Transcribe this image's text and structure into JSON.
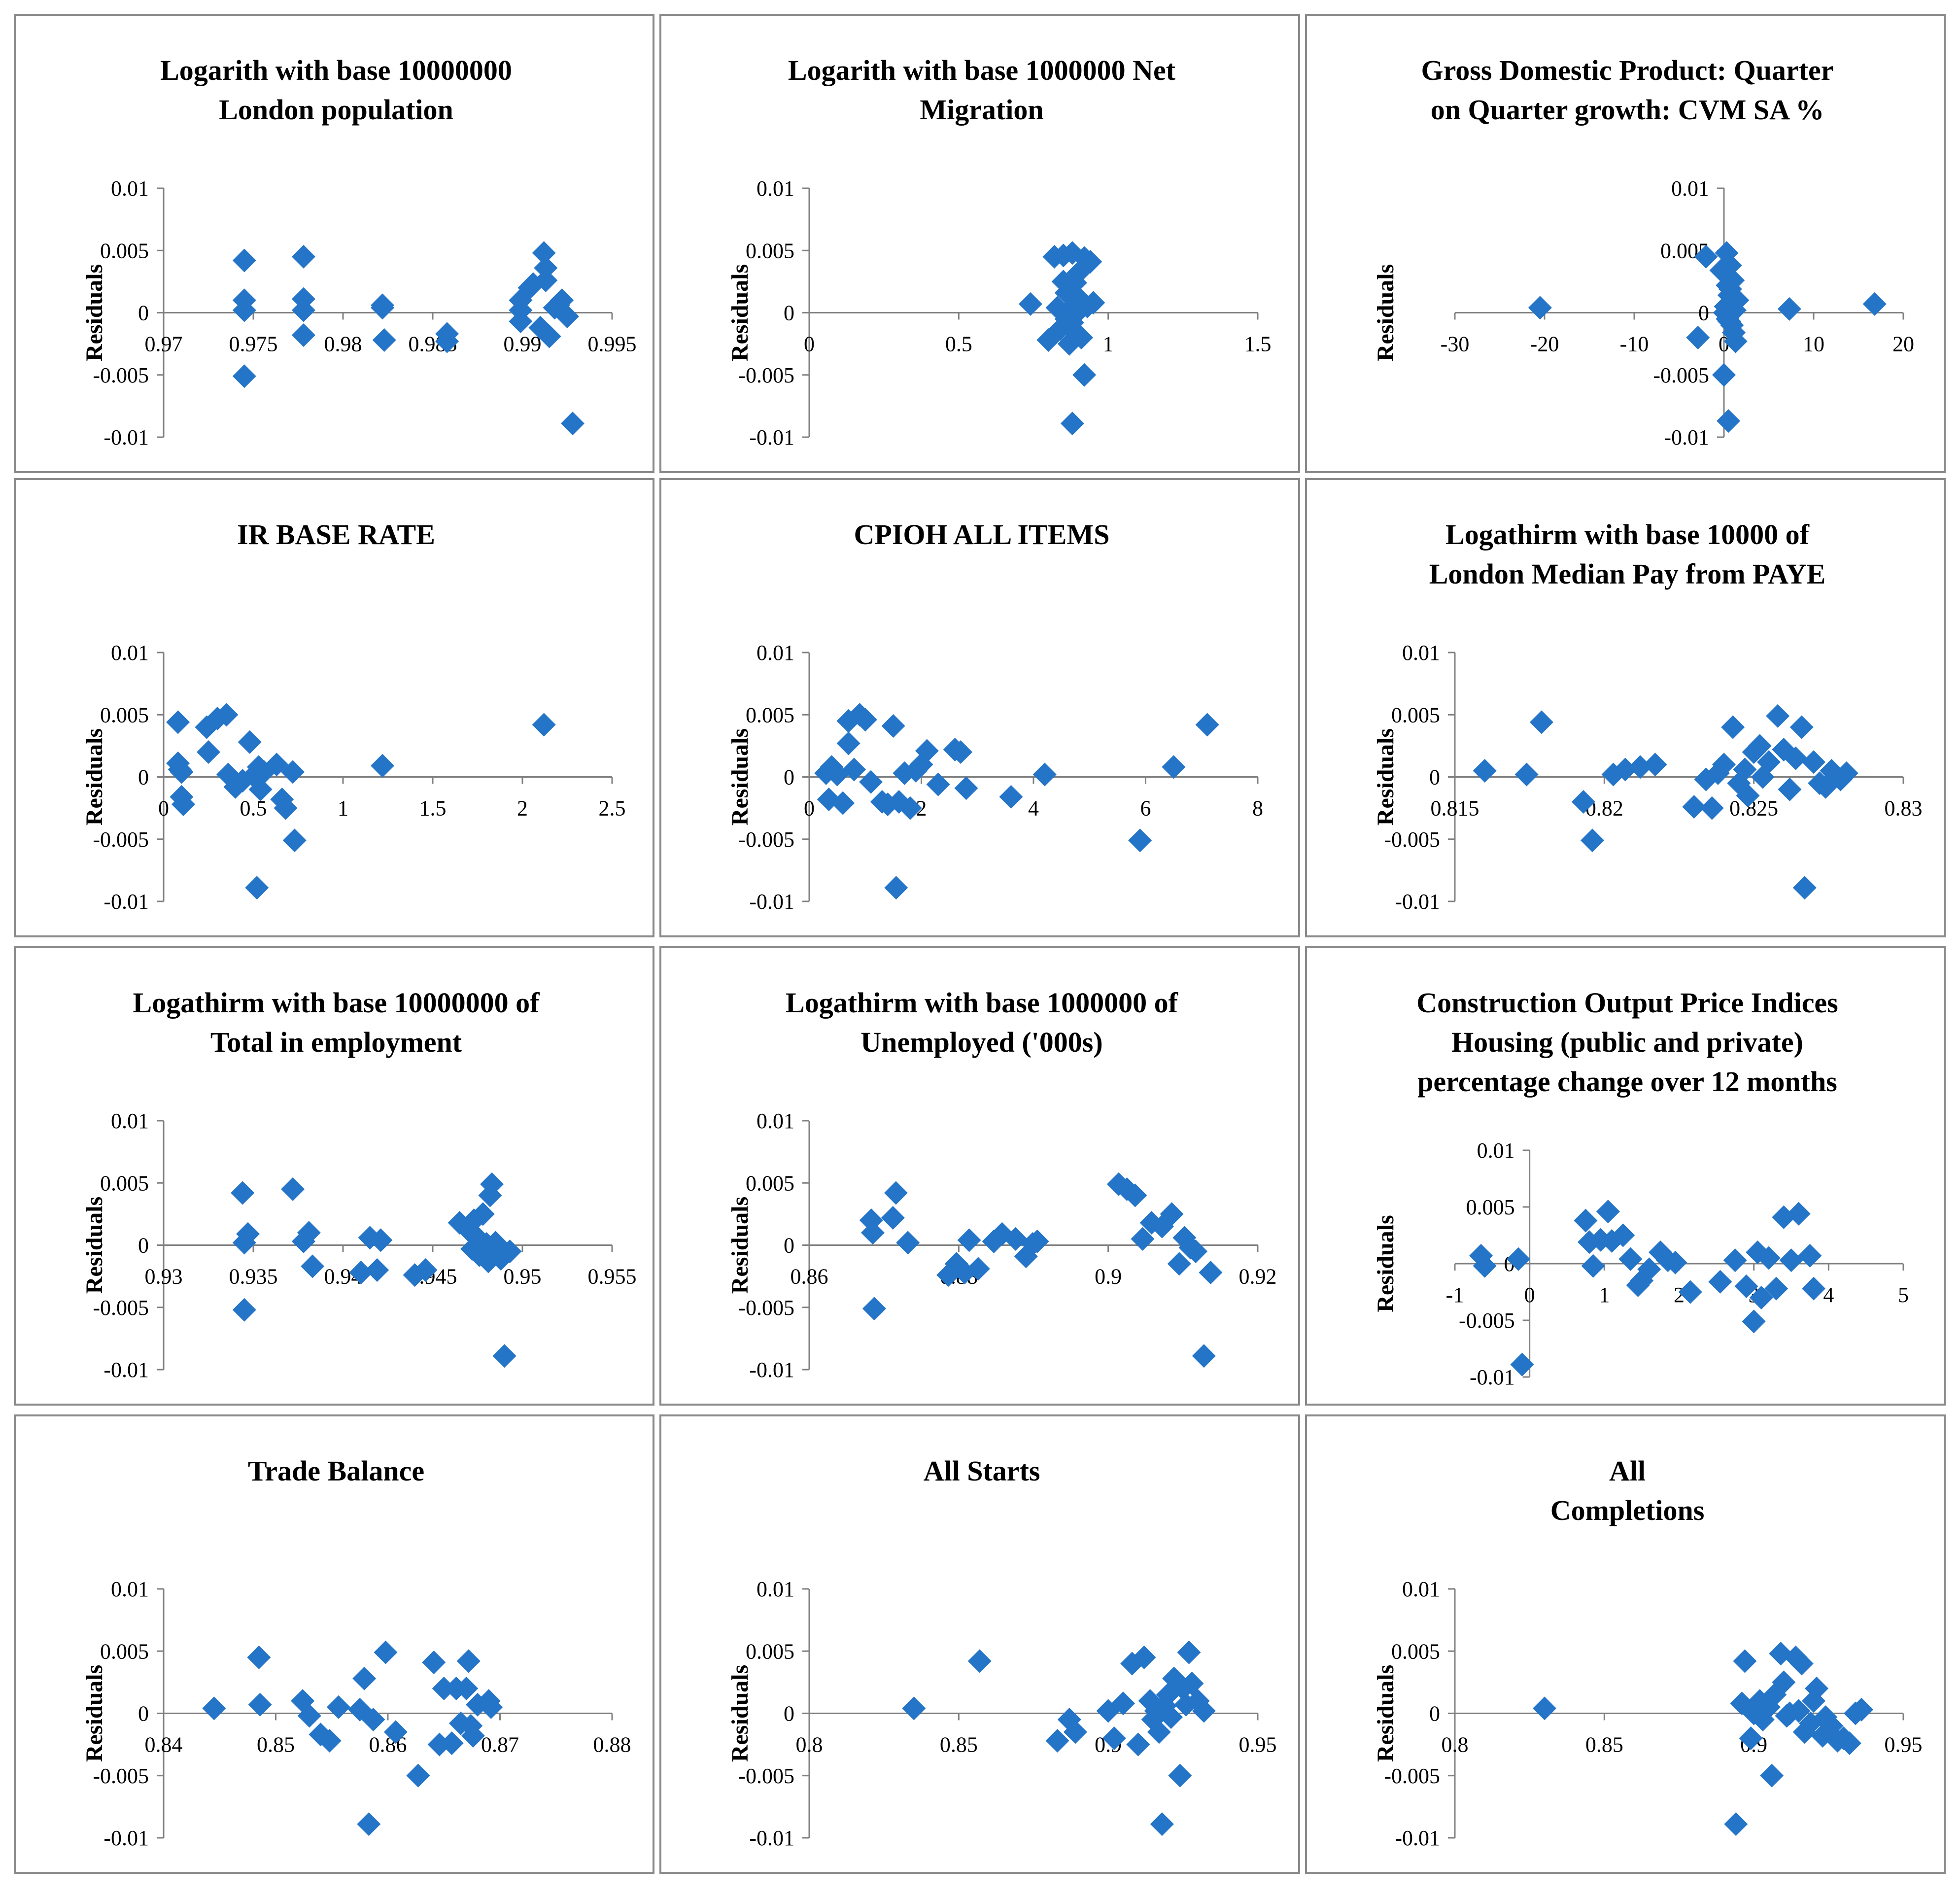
{
  "marker_color": "#2474c8",
  "axis_color": "#808080",
  "border_color": "#8a8a8a",
  "chart_data": [
    {
      "type": "scatter",
      "title_lines": [
        "Logarith with base 10000000",
        "London population"
      ],
      "ylabel": "Residuals",
      "xlim": [
        0.97,
        0.995
      ],
      "ylim": [
        -0.01,
        0.01
      ],
      "x_ticks": [
        "0.97",
        "0.975",
        "0.98",
        "0.985",
        "0.99",
        "0.995"
      ],
      "y_ticks": [
        "0.01",
        "0.005",
        "0",
        "-0.005",
        "-0.01"
      ],
      "x": [
        0.9745,
        0.9745,
        0.9745,
        0.9745,
        0.9778,
        0.9778,
        0.9778,
        0.9778,
        0.9822,
        0.9822,
        0.9823,
        0.9858,
        0.9858,
        0.9899,
        0.9899,
        0.9899,
        0.9904,
        0.9906,
        0.991,
        0.9912,
        0.9913,
        0.9913,
        0.9915,
        0.9918,
        0.992,
        0.9922,
        0.9925,
        0.9928
      ],
      "y": [
        0.0042,
        0.001,
        0.0002,
        -0.0051,
        0.0045,
        0.0011,
        0.0002,
        -0.0018,
        0.0006,
        0.0004,
        -0.0022,
        -0.0017,
        -0.0023,
        0.001,
        0.0002,
        -0.0007,
        0.002,
        0.0023,
        -0.0012,
        0.0048,
        0.0036,
        0.0026,
        -0.0019,
        0.0004,
        0.0006,
        0.001,
        -0.0003,
        -0.0089
      ]
    },
    {
      "type": "scatter",
      "title_lines": [
        "Logarith with base 1000000 Net",
        "Migration"
      ],
      "ylabel": "Residuals",
      "xlim": [
        0,
        1.5
      ],
      "ylim": [
        -0.01,
        0.01
      ],
      "x_ticks": [
        "0",
        "0.5",
        "1",
        "1.5"
      ],
      "y_ticks": [
        "0.01",
        "0.005",
        "0",
        "-0.005",
        "-0.01"
      ],
      "x": [
        0.74,
        0.8,
        0.82,
        0.83,
        0.84,
        0.85,
        0.86,
        0.87,
        0.87,
        0.88,
        0.88,
        0.89,
        0.89,
        0.9,
        0.9,
        0.91,
        0.91,
        0.92,
        0.92,
        0.93,
        0.94,
        0.95,
        0.9,
        0.85,
        0.88,
        0.86
      ],
      "y": [
        0.0007,
        -0.0022,
        0.0045,
        0.0004,
        -0.0013,
        0.0046,
        0.0016,
        0.0002,
        -0.0025,
        0.0048,
        -0.0089,
        0.0024,
        -0.0016,
        0.0032,
        0.0001,
        0.0006,
        -0.002,
        0.0044,
        -0.005,
        0.0005,
        0.0041,
        0.0008,
        0.0012,
        0.0025,
        -0.0008,
        -0.0005
      ]
    },
    {
      "type": "scatter",
      "title_lines": [
        "Gross Domestic Product: Quarter",
        "on Quarter growth: CVM SA %"
      ],
      "ylabel": "Residuals",
      "xlim": [
        -30,
        20
      ],
      "ylim": [
        -0.01,
        0.01
      ],
      "x_ticks": [
        "-30",
        "-20",
        "-10",
        "0",
        "10",
        "20"
      ],
      "y_ticks": [
        "0.01",
        "0.005",
        "0",
        "-0.005",
        "-0.01"
      ],
      "x": [
        -20.5,
        -2.9,
        -2.0,
        -0.3,
        0.0,
        0.2,
        0.3,
        0.4,
        0.5,
        0.6,
        0.6,
        0.7,
        0.8,
        0.9,
        1.0,
        1.1,
        1.2,
        1.3,
        1.5,
        0.1,
        0.4,
        0.7,
        7.3,
        16.8
      ],
      "y": [
        0.0004,
        -0.002,
        0.0045,
        0.0034,
        -0.005,
        0.0005,
        0.0048,
        0.0022,
        -0.0087,
        -0.0007,
        0.0014,
        0.0038,
        0.0008,
        -0.001,
        0.0026,
        -0.0016,
        0.0002,
        -0.0023,
        0.001,
        0.0,
        -0.0005,
        0.0019,
        0.0003,
        0.0007
      ]
    },
    {
      "type": "scatter",
      "title_lines": [
        "IR BASE RATE"
      ],
      "ylabel": "Residuals",
      "xlim": [
        0,
        2.5
      ],
      "ylim": [
        -0.01,
        0.01
      ],
      "x_ticks": [
        "0",
        "0.5",
        "1",
        "1.5",
        "2",
        "2.5"
      ],
      "y_ticks": [
        "0.01",
        "0.005",
        "0",
        "-0.005",
        "-0.01"
      ],
      "x": [
        0.08,
        0.08,
        0.09,
        0.1,
        0.1,
        0.11,
        0.24,
        0.25,
        0.3,
        0.35,
        0.36,
        0.4,
        0.44,
        0.48,
        0.5,
        0.52,
        0.53,
        0.54,
        0.56,
        0.63,
        0.66,
        0.68,
        0.72,
        0.73,
        1.22,
        2.12
      ],
      "y": [
        0.0044,
        0.0011,
        0.0006,
        0.0004,
        -0.0016,
        -0.0022,
        0.004,
        0.002,
        0.0047,
        0.005,
        0.0002,
        -0.0008,
        -0.0003,
        0.0028,
        0.0001,
        -0.0089,
        0.0008,
        -0.001,
        0.0004,
        0.001,
        -0.0018,
        -0.0025,
        0.0004,
        -0.0051,
        0.0009,
        0.0042
      ]
    },
    {
      "type": "scatter",
      "title_lines": [
        "CPIOH ALL ITEMS"
      ],
      "ylabel": "Residuals",
      "xlim": [
        0,
        8
      ],
      "ylim": [
        -0.01,
        0.01
      ],
      "x_ticks": [
        "0",
        "2",
        "4",
        "6",
        "8"
      ],
      "y_ticks": [
        "0.01",
        "0.005",
        "0",
        "-0.005",
        "-0.01"
      ],
      "x": [
        0.3,
        0.35,
        0.4,
        0.5,
        0.6,
        0.7,
        0.7,
        0.8,
        0.9,
        1.0,
        1.1,
        1.3,
        1.4,
        1.5,
        1.55,
        1.6,
        1.7,
        1.8,
        1.9,
        2.0,
        2.1,
        2.3,
        2.6,
        2.7,
        2.8,
        3.6,
        4.2,
        5.9,
        6.5,
        7.1
      ],
      "y": [
        0.0003,
        -0.0018,
        0.0008,
        0.0002,
        -0.0021,
        0.0045,
        0.0027,
        0.0006,
        0.005,
        0.0046,
        -0.0004,
        -0.002,
        -0.0022,
        0.0041,
        -0.0089,
        -0.002,
        0.0003,
        -0.0025,
        0.0005,
        0.001,
        0.0021,
        -0.0006,
        0.0022,
        0.002,
        -0.0009,
        -0.0016,
        0.0002,
        -0.0051,
        0.0008,
        0.0042
      ]
    },
    {
      "type": "scatter",
      "title_lines": [
        "Logathirm with base 10000 of",
        "London Median Pay from PAYE"
      ],
      "ylabel": "Residuals",
      "xlim": [
        0.815,
        0.83
      ],
      "ylim": [
        -0.01,
        0.01
      ],
      "x_ticks": [
        "0.815",
        "0.82",
        "0.825",
        "0.83"
      ],
      "y_ticks": [
        "0.01",
        "0.005",
        "0",
        "-0.005",
        "-0.01"
      ],
      "x": [
        0.816,
        0.8174,
        0.8179,
        0.8193,
        0.8196,
        0.8203,
        0.8207,
        0.8212,
        0.8217,
        0.823,
        0.8234,
        0.8236,
        0.8238,
        0.824,
        0.8243,
        0.8245,
        0.8247,
        0.8248,
        0.825,
        0.8252,
        0.8253,
        0.8255,
        0.8258,
        0.826,
        0.8262,
        0.8264,
        0.8266,
        0.8267,
        0.827,
        0.8272,
        0.8274,
        0.8276,
        0.8279,
        0.8281
      ],
      "y": [
        0.0005,
        0.0002,
        0.0044,
        -0.002,
        -0.0051,
        0.0002,
        0.0006,
        0.0008,
        0.001,
        -0.0024,
        -0.0002,
        -0.0025,
        0.0003,
        0.001,
        0.004,
        -0.0005,
        0.0006,
        -0.0015,
        0.002,
        0.0025,
        0.0,
        0.0012,
        0.0049,
        0.0022,
        -0.001,
        0.0015,
        0.004,
        -0.0089,
        0.0012,
        -0.0005,
        -0.0008,
        0.0005,
        -0.0002,
        0.0003
      ]
    },
    {
      "type": "scatter",
      "title_lines": [
        "Logathirm with base 10000000 of",
        "Total in   employment"
      ],
      "ylabel": "Residuals",
      "xlim": [
        0.93,
        0.955
      ],
      "ylim": [
        -0.01,
        0.01
      ],
      "x_ticks": [
        "0.93",
        "0.935",
        "0.94",
        "0.945",
        "0.95",
        "0.955"
      ],
      "y_ticks": [
        "0.01",
        "0.005",
        "0",
        "-0.005",
        "-0.01"
      ],
      "x": [
        0.9344,
        0.9345,
        0.9345,
        0.9347,
        0.9372,
        0.9378,
        0.9381,
        0.9383,
        0.941,
        0.9415,
        0.9419,
        0.9421,
        0.944,
        0.9446,
        0.9465,
        0.947,
        0.9472,
        0.9473,
        0.9475,
        0.9476,
        0.9478,
        0.948,
        0.9481,
        0.9482,
        0.9483,
        0.9485,
        0.9486,
        0.949,
        0.9493,
        0.9488
      ],
      "y": [
        0.0042,
        0.0002,
        -0.0052,
        0.0009,
        0.0045,
        0.0003,
        0.001,
        -0.0017,
        -0.0022,
        0.0006,
        -0.002,
        0.0004,
        -0.0024,
        -0.002,
        0.0018,
        0.0012,
        -0.0003,
        0.002,
        0.0006,
        -0.0008,
        0.0025,
        0.0001,
        -0.0013,
        0.004,
        0.0049,
        0.0002,
        -0.0002,
        -0.0089,
        -0.0005,
        -0.0011
      ]
    },
    {
      "type": "scatter",
      "title_lines": [
        "Logathirm with base 1000000 of",
        "Unemployed ('000s)"
      ],
      "ylabel": "Residuals",
      "xlim": [
        0.86,
        0.92
      ],
      "ylim": [
        -0.01,
        0.01
      ],
      "x_ticks": [
        "0.86",
        "0.88",
        "0.9",
        "0.92"
      ],
      "y_ticks": [
        "0.01",
        "0.005",
        "0",
        "-0.005",
        "-0.01"
      ],
      "x": [
        0.8683,
        0.8685,
        0.8687,
        0.8712,
        0.8716,
        0.8732,
        0.8786,
        0.8797,
        0.8808,
        0.8814,
        0.8826,
        0.8847,
        0.8858,
        0.8876,
        0.889,
        0.8899,
        0.8905,
        0.9014,
        0.9025,
        0.9036,
        0.9046,
        0.9058,
        0.9072,
        0.9085,
        0.9095,
        0.9102,
        0.911,
        0.9117,
        0.9128,
        0.9137
      ],
      "y": [
        0.002,
        0.001,
        -0.0051,
        0.0022,
        0.0042,
        0.0002,
        -0.0024,
        -0.0015,
        -0.0022,
        0.0004,
        -0.0019,
        0.0003,
        0.0009,
        0.0005,
        -0.0009,
        0.0001,
        0.0003,
        0.0049,
        0.0045,
        0.004,
        0.0005,
        0.0018,
        0.0015,
        0.0025,
        -0.0015,
        0.0006,
        -0.0002,
        -0.0005,
        -0.0089,
        -0.0022
      ]
    },
    {
      "type": "scatter",
      "title_lines": [
        "Construction Output Price Indices",
        "Housing (public and private)",
        "percentage change over 12 months"
      ],
      "ylabel": "Residuals",
      "xlim": [
        -1,
        5
      ],
      "ylim": [
        -0.01,
        0.01
      ],
      "x_ticks": [
        "-1",
        "0",
        "1",
        "2",
        "3",
        "4",
        "5"
      ],
      "y_ticks": [
        "0.01",
        "0.005",
        "0",
        "-0.005",
        "-0.01"
      ],
      "x": [
        -0.65,
        -0.6,
        -0.15,
        -0.1,
        0.75,
        0.8,
        0.85,
        0.95,
        1.05,
        1.1,
        1.25,
        1.35,
        1.45,
        1.5,
        1.6,
        1.75,
        1.85,
        1.95,
        2.15,
        2.55,
        2.75,
        2.9,
        3.0,
        3.05,
        3.1,
        3.2,
        3.3,
        3.4,
        3.5,
        3.6,
        3.75,
        3.8
      ],
      "y": [
        0.0007,
        -0.0002,
        0.0004,
        -0.0089,
        0.0038,
        0.0019,
        -0.0002,
        0.0021,
        0.0046,
        0.002,
        0.0025,
        0.0004,
        -0.0019,
        -0.0015,
        -0.0005,
        0.001,
        0.0003,
        0.0001,
        -0.0025,
        -0.0016,
        0.0003,
        -0.002,
        -0.0051,
        0.001,
        -0.003,
        0.0005,
        -0.0022,
        0.0041,
        0.0003,
        0.0044,
        0.0007,
        -0.0022
      ]
    },
    {
      "type": "scatter",
      "title_lines": [
        "Trade Balance"
      ],
      "ylabel": "Residuals",
      "xlim": [
        0.84,
        0.88
      ],
      "ylim": [
        -0.01,
        0.01
      ],
      "x_ticks": [
        "0.84",
        "0.85",
        "0.86",
        "0.87",
        "0.88"
      ],
      "y_ticks": [
        "0.01",
        "0.005",
        "0",
        "-0.005",
        "-0.01"
      ],
      "x": [
        0.8445,
        0.8485,
        0.8486,
        0.8524,
        0.853,
        0.854,
        0.8548,
        0.8556,
        0.8575,
        0.8583,
        0.8587,
        0.8598,
        0.8607,
        0.8627,
        0.8641,
        0.8646,
        0.865,
        0.8657,
        0.8661,
        0.8665,
        0.867,
        0.8672,
        0.8674,
        0.8676,
        0.868,
        0.869,
        0.8692,
        0.8579
      ],
      "y": [
        0.0004,
        0.0045,
        0.0007,
        0.001,
        -0.0002,
        -0.0017,
        -0.0022,
        0.0005,
        0.0003,
        -0.0089,
        -0.0005,
        0.0049,
        -0.0015,
        -0.005,
        0.0041,
        -0.0025,
        0.002,
        -0.0024,
        0.002,
        -0.0008,
        0.002,
        0.0042,
        -0.001,
        -0.0018,
        0.0007,
        0.001,
        0.0005,
        0.0028
      ]
    },
    {
      "type": "scatter",
      "title_lines": [
        "All Starts"
      ],
      "ylabel": "Residuals",
      "xlim": [
        0.8,
        0.95
      ],
      "ylim": [
        -0.01,
        0.01
      ],
      "x_ticks": [
        "0.8",
        "0.85",
        "0.9",
        "0.95"
      ],
      "y_ticks": [
        "0.01",
        "0.005",
        "0",
        "-0.005",
        "-0.01"
      ],
      "x": [
        0.835,
        0.857,
        0.883,
        0.887,
        0.889,
        0.9,
        0.902,
        0.905,
        0.908,
        0.91,
        0.912,
        0.914,
        0.915,
        0.916,
        0.917,
        0.918,
        0.919,
        0.92,
        0.921,
        0.922,
        0.924,
        0.925,
        0.926,
        0.927,
        0.928,
        0.93,
        0.932,
        0.917
      ],
      "y": [
        0.0004,
        0.0042,
        -0.0022,
        -0.0005,
        -0.0015,
        0.0002,
        -0.002,
        0.0008,
        0.004,
        -0.0025,
        0.0045,
        0.001,
        -0.0005,
        0.0002,
        -0.0015,
        -0.0089,
        0.0006,
        0.0015,
        -0.0003,
        0.0028,
        -0.005,
        0.002,
        0.0007,
        0.0049,
        0.0024,
        0.001,
        0.0002,
        0.0003
      ]
    },
    {
      "type": "scatter",
      "title_lines": [
        "All",
        "Completions"
      ],
      "ylabel": "Residuals",
      "xlim": [
        0.8,
        0.95
      ],
      "ylim": [
        -0.01,
        0.01
      ],
      "x_ticks": [
        "0.8",
        "0.85",
        "0.9",
        "0.95"
      ],
      "y_ticks": [
        "0.01",
        "0.005",
        "0",
        "-0.005",
        "-0.01"
      ],
      "x": [
        0.83,
        0.894,
        0.896,
        0.897,
        0.899,
        0.9,
        0.902,
        0.903,
        0.905,
        0.906,
        0.907,
        0.909,
        0.91,
        0.911,
        0.912,
        0.914,
        0.915,
        0.916,
        0.917,
        0.919,
        0.92,
        0.921,
        0.923,
        0.924,
        0.926,
        0.928,
        0.93,
        0.932,
        0.934,
        0.936
      ],
      "y": [
        0.0004,
        -0.0089,
        0.0008,
        0.0042,
        -0.002,
        0.0,
        0.001,
        -0.0005,
        0.0005,
        -0.005,
        0.0015,
        0.0048,
        0.0025,
        -0.0002,
        0.0,
        0.0045,
        0.0002,
        0.004,
        -0.0015,
        -0.0008,
        0.001,
        0.002,
        -0.0018,
        -0.0003,
        -0.001,
        -0.0022,
        -0.002,
        -0.0024,
        0.0,
        0.0003
      ]
    }
  ]
}
